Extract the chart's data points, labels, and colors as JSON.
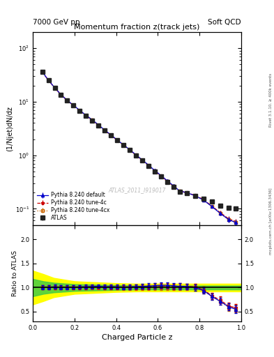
{
  "title_main": "Momentum fraction z(track jets)",
  "header_left": "7000 GeV pp",
  "header_right": "Soft QCD",
  "ylabel_main": "(1/Njet)dN/dz",
  "ylabel_ratio": "Ratio to ATLAS",
  "xlabel": "Charged Particle z",
  "watermark": "ATLAS_2011_I919017",
  "right_label_top": "Rivet 3.1.10, ≥ 400k events",
  "right_label_bot": "mcplots.cern.ch [arXiv:1306.3436]",
  "atlas_x": [
    0.045,
    0.075,
    0.105,
    0.135,
    0.165,
    0.195,
    0.225,
    0.255,
    0.285,
    0.315,
    0.345,
    0.375,
    0.405,
    0.435,
    0.465,
    0.495,
    0.525,
    0.555,
    0.585,
    0.615,
    0.645,
    0.675,
    0.705,
    0.74,
    0.78,
    0.82,
    0.86,
    0.9,
    0.94,
    0.975
  ],
  "atlas_y": [
    36.0,
    25.0,
    18.0,
    13.5,
    10.5,
    8.5,
    6.8,
    5.5,
    4.5,
    3.6,
    2.9,
    2.35,
    1.9,
    1.55,
    1.25,
    1.0,
    0.8,
    0.64,
    0.5,
    0.4,
    0.32,
    0.26,
    0.21,
    0.195,
    0.175,
    0.155,
    0.135,
    0.115,
    0.105,
    0.1
  ],
  "atlas_yerr": [
    1.5,
    1.0,
    0.7,
    0.5,
    0.4,
    0.3,
    0.25,
    0.2,
    0.15,
    0.12,
    0.1,
    0.08,
    0.07,
    0.06,
    0.05,
    0.04,
    0.035,
    0.03,
    0.025,
    0.02,
    0.015,
    0.012,
    0.01,
    0.009,
    0.008,
    0.007,
    0.007,
    0.006,
    0.006,
    0.006
  ],
  "py_default_x": [
    0.045,
    0.075,
    0.105,
    0.135,
    0.165,
    0.195,
    0.225,
    0.255,
    0.285,
    0.315,
    0.345,
    0.375,
    0.405,
    0.435,
    0.465,
    0.495,
    0.525,
    0.555,
    0.585,
    0.615,
    0.645,
    0.675,
    0.705,
    0.74,
    0.78,
    0.82,
    0.86,
    0.9,
    0.94,
    0.975
  ],
  "py_default_y": [
    36.2,
    25.2,
    18.3,
    13.6,
    10.6,
    8.6,
    6.9,
    5.6,
    4.6,
    3.7,
    2.95,
    2.4,
    1.93,
    1.57,
    1.27,
    1.02,
    0.82,
    0.66,
    0.52,
    0.42,
    0.335,
    0.27,
    0.215,
    0.2,
    0.175,
    0.145,
    0.11,
    0.082,
    0.063,
    0.055
  ],
  "py_default_yerr": [
    0.5,
    0.4,
    0.3,
    0.25,
    0.2,
    0.15,
    0.12,
    0.1,
    0.08,
    0.07,
    0.06,
    0.05,
    0.04,
    0.035,
    0.03,
    0.025,
    0.02,
    0.018,
    0.015,
    0.012,
    0.01,
    0.009,
    0.008,
    0.007,
    0.007,
    0.007,
    0.007,
    0.007,
    0.007,
    0.007
  ],
  "py_4c_x": [
    0.045,
    0.075,
    0.105,
    0.135,
    0.165,
    0.195,
    0.225,
    0.255,
    0.285,
    0.315,
    0.345,
    0.375,
    0.405,
    0.435,
    0.465,
    0.495,
    0.525,
    0.555,
    0.585,
    0.615,
    0.645,
    0.675,
    0.705,
    0.74,
    0.78,
    0.82,
    0.86,
    0.9,
    0.94,
    0.975
  ],
  "py_4c_y": [
    36.1,
    25.1,
    18.2,
    13.55,
    10.55,
    8.55,
    6.85,
    5.55,
    4.55,
    3.65,
    2.92,
    2.37,
    1.91,
    1.56,
    1.26,
    1.01,
    0.81,
    0.65,
    0.515,
    0.415,
    0.33,
    0.265,
    0.215,
    0.2,
    0.178,
    0.148,
    0.112,
    0.085,
    0.065,
    0.058
  ],
  "py_4c_yerr": [
    0.5,
    0.4,
    0.3,
    0.25,
    0.2,
    0.15,
    0.12,
    0.1,
    0.08,
    0.07,
    0.06,
    0.05,
    0.04,
    0.035,
    0.03,
    0.025,
    0.02,
    0.018,
    0.015,
    0.012,
    0.01,
    0.009,
    0.008,
    0.007,
    0.007,
    0.007,
    0.007,
    0.007,
    0.007,
    0.007
  ],
  "py_4cx_x": [
    0.045,
    0.075,
    0.105,
    0.135,
    0.165,
    0.195,
    0.225,
    0.255,
    0.285,
    0.315,
    0.345,
    0.375,
    0.405,
    0.435,
    0.465,
    0.495,
    0.525,
    0.555,
    0.585,
    0.615,
    0.645,
    0.675,
    0.705,
    0.74,
    0.78,
    0.82,
    0.86,
    0.9,
    0.94,
    0.975
  ],
  "py_4cx_y": [
    36.0,
    25.0,
    18.1,
    13.5,
    10.5,
    8.5,
    6.8,
    5.5,
    4.52,
    3.62,
    2.9,
    2.36,
    1.9,
    1.55,
    1.25,
    1.0,
    0.8,
    0.64,
    0.505,
    0.405,
    0.322,
    0.262,
    0.212,
    0.197,
    0.175,
    0.145,
    0.11,
    0.082,
    0.062,
    0.056
  ],
  "py_4cx_yerr": [
    0.5,
    0.4,
    0.3,
    0.25,
    0.2,
    0.15,
    0.12,
    0.1,
    0.08,
    0.07,
    0.06,
    0.05,
    0.04,
    0.035,
    0.03,
    0.025,
    0.02,
    0.018,
    0.015,
    0.012,
    0.01,
    0.009,
    0.008,
    0.007,
    0.007,
    0.007,
    0.007,
    0.007,
    0.007,
    0.007
  ],
  "band_yellow_x": [
    0.0,
    0.05,
    0.1,
    0.2,
    0.3,
    0.4,
    0.5,
    0.6,
    0.7,
    0.8,
    0.9,
    1.0
  ],
  "band_yellow_lo": [
    0.65,
    0.72,
    0.8,
    0.87,
    0.89,
    0.91,
    0.92,
    0.92,
    0.92,
    0.92,
    0.92,
    0.92
  ],
  "band_yellow_hi": [
    1.35,
    1.28,
    1.2,
    1.13,
    1.11,
    1.09,
    1.08,
    1.08,
    1.08,
    1.08,
    1.08,
    1.08
  ],
  "band_green_x": [
    0.0,
    0.05,
    0.1,
    0.2,
    0.3,
    0.4,
    0.5,
    0.6,
    0.7,
    0.8,
    0.9,
    1.0
  ],
  "band_green_lo": [
    0.82,
    0.87,
    0.9,
    0.93,
    0.94,
    0.95,
    0.96,
    0.96,
    0.96,
    0.96,
    0.96,
    0.96
  ],
  "band_green_hi": [
    1.18,
    1.13,
    1.1,
    1.07,
    1.06,
    1.05,
    1.04,
    1.04,
    1.04,
    1.04,
    1.04,
    1.04
  ],
  "color_atlas": "#222222",
  "color_default": "#0000cc",
  "color_4c": "#cc0000",
  "color_4cx": "#cc6600",
  "color_band_yellow": "#ffff00",
  "color_band_green": "#44cc44",
  "xlim": [
    0.0,
    1.0
  ],
  "ylim_main_log": [
    0.05,
    200
  ],
  "ylim_ratio": [
    0.3,
    2.3
  ],
  "ratio_yticks": [
    0.5,
    1.0,
    1.5,
    2.0
  ]
}
